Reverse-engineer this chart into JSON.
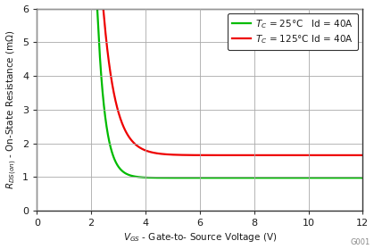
{
  "title": "",
  "xlabel": "$V_{GS}$ - Gate-to- Source Voltage (V)",
  "ylabel": "$R_{DS(on)}$ - On-State Resistance (m$\\Omega$)",
  "xlim": [
    0,
    12
  ],
  "ylim": [
    0,
    6
  ],
  "xticks": [
    0,
    2,
    4,
    6,
    8,
    10,
    12
  ],
  "yticks": [
    0,
    1,
    2,
    3,
    4,
    5,
    6
  ],
  "legend_labels": [
    "$T_C$ = 25°C   Id = 40A",
    "$T_C$ = 125°C Id = 40A"
  ],
  "line_colors": [
    "#00bb00",
    "#ee0000"
  ],
  "green_vgs_start": 2.2,
  "red_vgs_start": 2.3,
  "green_asymptote": 0.98,
  "red_asymptote": 1.65,
  "green_scale": 5.5,
  "green_sharpness": 3.5,
  "red_scale": 6.0,
  "red_sharpness": 2.2,
  "background_color": "#ffffff",
  "font_color": "#1a1a1a",
  "grid_color": "#aaaaaa",
  "spine_color": "#333333"
}
